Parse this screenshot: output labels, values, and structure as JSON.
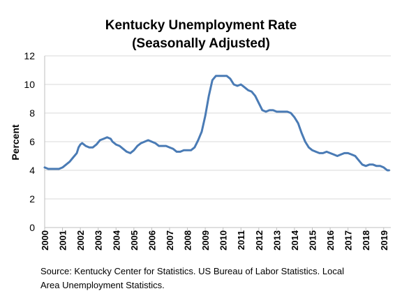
{
  "chart_data": {
    "type": "line",
    "title": "Kentucky Unemployment Rate",
    "subtitle": "(Seasonally Adjusted)",
    "ylabel": "Percent",
    "xlabel": "",
    "ylim": [
      0,
      12
    ],
    "yticks": [
      0,
      2,
      4,
      6,
      8,
      10,
      12
    ],
    "xlim": [
      2000,
      2019.4
    ],
    "xticks": [
      "2000",
      "2001",
      "2002",
      "2003",
      "2004",
      "2005",
      "2006",
      "2007",
      "2008",
      "2009",
      "2010",
      "2011",
      "2012",
      "2013",
      "2014",
      "2015",
      "2016",
      "2017",
      "2018",
      "2019"
    ],
    "grid": "horizontal",
    "color": "#4a7bb5",
    "series": [
      {
        "x": [
          2000.0,
          2000.2,
          2000.5,
          2000.8,
          2001.0,
          2001.2,
          2001.4,
          2001.6,
          2001.8,
          2001.9,
          2002.0,
          2002.1,
          2002.3,
          2002.5,
          2002.7,
          2002.9,
          2003.1,
          2003.3,
          2003.5,
          2003.7,
          2003.8,
          2004.0,
          2004.2,
          2004.4,
          2004.6,
          2004.8,
          2005.0,
          2005.2,
          2005.4,
          2005.6,
          2005.8,
          2006.0,
          2006.2,
          2006.4,
          2006.6,
          2006.8,
          2007.0,
          2007.2,
          2007.4,
          2007.6,
          2007.8,
          2008.0,
          2008.2,
          2008.4,
          2008.6,
          2008.8,
          2009.0,
          2009.2,
          2009.4,
          2009.6,
          2009.8,
          2010.0,
          2010.2,
          2010.4,
          2010.6,
          2010.8,
          2011.0,
          2011.2,
          2011.4,
          2011.6,
          2011.8,
          2012.0,
          2012.2,
          2012.4,
          2012.6,
          2012.8,
          2013.0,
          2013.2,
          2013.4,
          2013.6,
          2013.8,
          2014.0,
          2014.2,
          2014.4,
          2014.6,
          2014.8,
          2015.0,
          2015.2,
          2015.4,
          2015.6,
          2015.8,
          2016.0,
          2016.2,
          2016.4,
          2016.6,
          2016.8,
          2017.0,
          2017.2,
          2017.4,
          2017.6,
          2017.8,
          2018.0,
          2018.2,
          2018.4,
          2018.6,
          2018.8,
          2019.0,
          2019.2,
          2019.3
        ],
        "y": [
          4.2,
          4.1,
          4.1,
          4.1,
          4.2,
          4.4,
          4.6,
          4.9,
          5.2,
          5.6,
          5.8,
          5.9,
          5.7,
          5.6,
          5.6,
          5.8,
          6.1,
          6.2,
          6.3,
          6.2,
          6.0,
          5.8,
          5.7,
          5.5,
          5.3,
          5.2,
          5.4,
          5.7,
          5.9,
          6.0,
          6.1,
          6.0,
          5.9,
          5.7,
          5.7,
          5.7,
          5.6,
          5.5,
          5.3,
          5.3,
          5.4,
          5.4,
          5.4,
          5.6,
          6.1,
          6.7,
          7.8,
          9.2,
          10.3,
          10.6,
          10.6,
          10.6,
          10.6,
          10.4,
          10.0,
          9.9,
          10.0,
          9.8,
          9.6,
          9.5,
          9.2,
          8.7,
          8.2,
          8.1,
          8.2,
          8.2,
          8.1,
          8.1,
          8.1,
          8.1,
          8.0,
          7.7,
          7.3,
          6.6,
          6.0,
          5.6,
          5.4,
          5.3,
          5.2,
          5.2,
          5.3,
          5.2,
          5.1,
          5.0,
          5.1,
          5.2,
          5.2,
          5.1,
          5.0,
          4.7,
          4.4,
          4.3,
          4.4,
          4.4,
          4.3,
          4.3,
          4.2,
          4.0,
          4.0
        ]
      }
    ]
  },
  "footer": {
    "source_line1": "Source: Kentucky Center for Statistics. US Bureau of Labor Statistics. Local",
    "source_line2": "Area Unemployment Statistics."
  }
}
